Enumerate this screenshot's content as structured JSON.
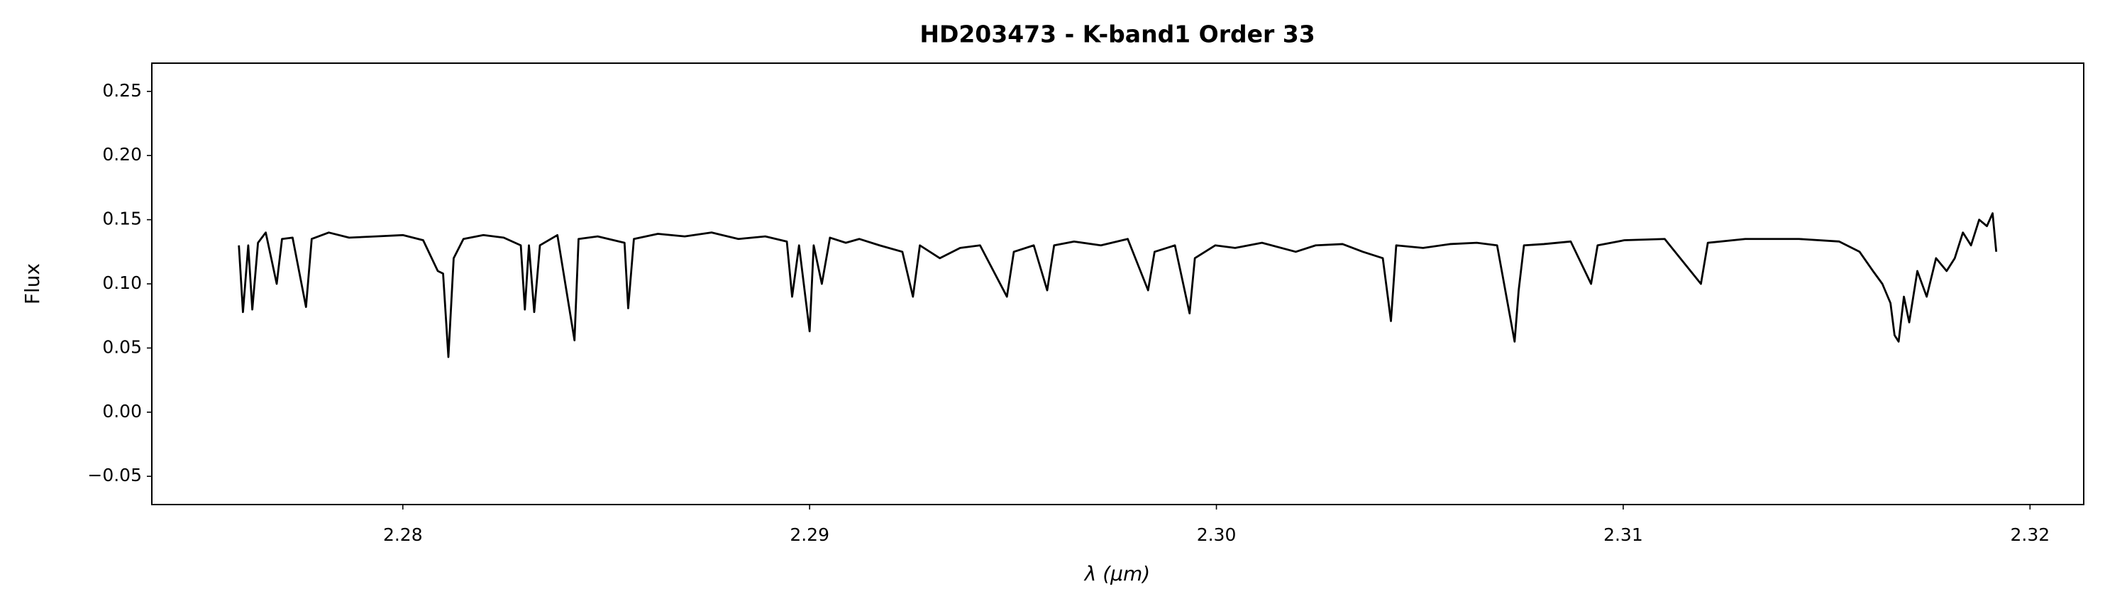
{
  "chart_data": {
    "type": "line",
    "title": "HD203473 - K-band1 Order 33",
    "xlabel": "λ (μm)",
    "ylabel": "Flux",
    "color": "#000000",
    "x": [
      2.27597,
      2.27607,
      2.2762,
      2.2763,
      2.27644,
      2.27663,
      2.2769,
      2.27703,
      2.27729,
      2.27762,
      2.27776,
      2.27818,
      2.27868,
      2.27934,
      2.28,
      2.2805,
      2.28086,
      2.28099,
      2.28112,
      2.28125,
      2.28149,
      2.28198,
      2.28248,
      2.2829,
      2.283,
      2.2831,
      2.28323,
      2.28337,
      2.2838,
      2.28422,
      2.28432,
      2.28479,
      2.28545,
      2.28554,
      2.28568,
      2.28627,
      2.28693,
      2.28759,
      2.28825,
      2.28891,
      2.28944,
      2.28957,
      2.28974,
      2.29,
      2.2901,
      2.2903,
      2.2905,
      2.29089,
      2.29122,
      2.29172,
      2.29228,
      2.29254,
      2.29271,
      2.2932,
      2.2937,
      2.29419,
      2.29485,
      2.29502,
      2.29551,
      2.29584,
      2.29601,
      2.2965,
      2.29716,
      2.29782,
      2.29832,
      2.29848,
      2.29898,
      2.29934,
      2.29947,
      2.29997,
      2.30046,
      2.30112,
      2.30195,
      2.30244,
      2.3031,
      2.3036,
      2.30409,
      2.30429,
      2.30442,
      2.30508,
      2.30574,
      2.3064,
      2.3069,
      2.30733,
      2.30743,
      2.30756,
      2.30805,
      2.30871,
      2.30921,
      2.30937,
      2.31003,
      2.31102,
      2.31191,
      2.31208,
      2.313,
      2.31432,
      2.31531,
      2.31581,
      2.31614,
      2.31637,
      2.31657,
      2.31667,
      2.31677,
      2.3169,
      2.31703,
      2.31723,
      2.31746,
      2.31769,
      2.31795,
      2.31815,
      2.31835,
      2.31855,
      2.31875,
      2.31894,
      2.31908,
      2.31917
    ],
    "values": [
      0.13,
      0.078,
      0.13,
      0.08,
      0.132,
      0.14,
      0.1,
      0.135,
      0.136,
      0.082,
      0.135,
      0.14,
      0.136,
      0.137,
      0.138,
      0.134,
      0.11,
      0.108,
      0.043,
      0.12,
      0.135,
      0.138,
      0.136,
      0.13,
      0.08,
      0.13,
      0.078,
      0.13,
      0.138,
      0.056,
      0.135,
      0.137,
      0.132,
      0.081,
      0.135,
      0.139,
      0.137,
      0.14,
      0.135,
      0.137,
      0.133,
      0.09,
      0.13,
      0.063,
      0.13,
      0.1,
      0.136,
      0.132,
      0.135,
      0.13,
      0.125,
      0.09,
      0.13,
      0.12,
      0.128,
      0.13,
      0.09,
      0.125,
      0.13,
      0.095,
      0.13,
      0.133,
      0.13,
      0.135,
      0.095,
      0.125,
      0.13,
      0.077,
      0.12,
      0.13,
      0.128,
      0.132,
      0.125,
      0.13,
      0.131,
      0.125,
      0.12,
      0.071,
      0.13,
      0.128,
      0.131,
      0.132,
      0.13,
      0.055,
      0.095,
      0.13,
      0.131,
      0.133,
      0.1,
      0.13,
      0.134,
      0.135,
      0.1,
      0.132,
      0.135,
      0.135,
      0.133,
      0.125,
      0.11,
      0.1,
      0.085,
      0.06,
      0.055,
      0.09,
      0.07,
      0.11,
      0.09,
      0.12,
      0.11,
      0.12,
      0.14,
      0.13,
      0.15,
      0.145,
      0.155,
      0.125
    ],
    "xlim": [
      2.27383,
      2.32132
    ],
    "ylim": [
      -0.072,
      0.272
    ],
    "xticks": [
      2.28,
      2.29,
      {
        "value": 2.3,
        "label": "2.30"
      },
      2.31,
      2.32
    ],
    "yticks": [
      {
        "value": -0.05,
        "label": "−0.05"
      },
      {
        "value": 0,
        "label": "0.00"
      },
      0.05,
      {
        "value": 0.1,
        "label": "0.10"
      },
      0.15,
      {
        "value": 0.2,
        "label": "0.20"
      },
      0.25
    ]
  }
}
